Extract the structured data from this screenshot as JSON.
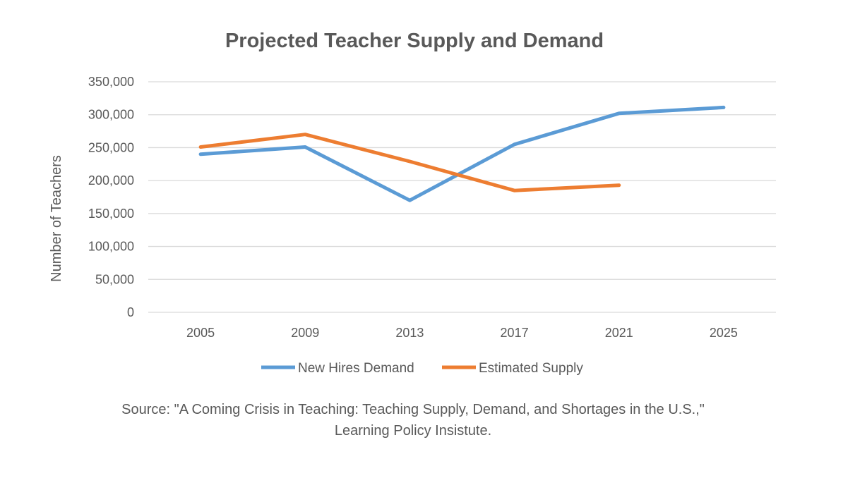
{
  "chart_data": {
    "type": "line",
    "title": "Projected Teacher Supply and Demand",
    "ylabel": "Number of Teachers",
    "xlabel": "",
    "categories": [
      "2005",
      "2009",
      "2013",
      "2017",
      "2021",
      "2025"
    ],
    "ylim": [
      0,
      350000
    ],
    "yticks": [
      0,
      50000,
      100000,
      150000,
      200000,
      250000,
      300000,
      350000
    ],
    "ytick_labels": [
      "0",
      "50,000",
      "100,000",
      "150,000",
      "200,000",
      "250,000",
      "300,000",
      "350,000"
    ],
    "grid": true,
    "legend_position": "bottom",
    "series": [
      {
        "name": "New Hires Demand",
        "color": "#5b9bd5",
        "values": [
          240000,
          251000,
          170000,
          255000,
          302000,
          311000
        ]
      },
      {
        "name": "Estimated Supply",
        "color": "#ed7d31",
        "values": [
          251000,
          270000,
          229000,
          185000,
          193000,
          null
        ]
      }
    ],
    "source": "Source: \"A Coming Crisis in Teaching: Teaching Supply, Demand, and Shortages in the U.S.,\" Learning Policy Insistute."
  }
}
